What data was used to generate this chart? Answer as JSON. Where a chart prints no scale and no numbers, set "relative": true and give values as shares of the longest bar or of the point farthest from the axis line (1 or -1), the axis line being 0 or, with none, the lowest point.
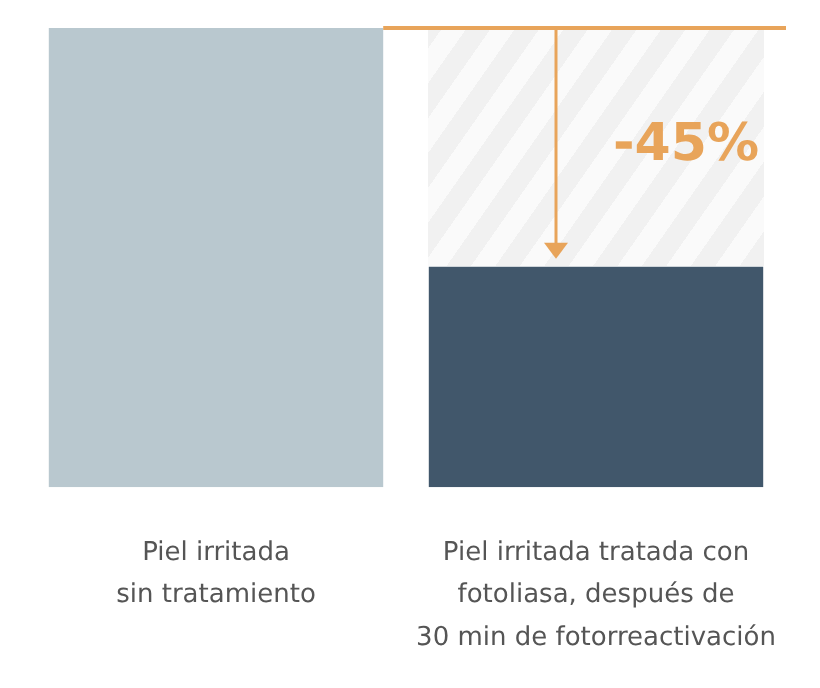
{
  "chart_data": {
    "type": "bar",
    "relative": true,
    "categories": [
      "Piel irritada\nsin tratamiento",
      "Piel irritada tratada con\nfotoliasa, después de\n30 min de fotorreactivación"
    ],
    "values": [
      1,
      0.48
    ],
    "colors": [
      "#b9c8cf",
      "#41576b"
    ],
    "ref_lines": [
      {
        "axis": "y",
        "value": 1,
        "color": "#e8a45a"
      }
    ],
    "annotations": [
      "-45%"
    ]
  }
}
